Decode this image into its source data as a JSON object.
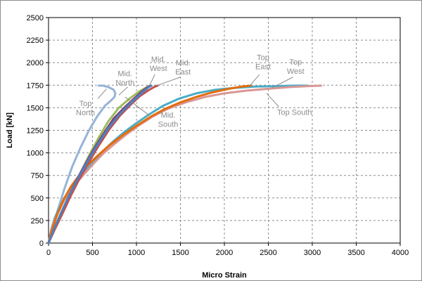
{
  "chart_data": {
    "type": "line",
    "title": "",
    "xlabel": "Micro Strain",
    "ylabel": "Load [kN]",
    "xlim": [
      0,
      4000
    ],
    "ylim": [
      0,
      2500
    ],
    "xticks": [
      0,
      500,
      1000,
      1500,
      2000,
      2500,
      3000,
      3500,
      4000
    ],
    "yticks": [
      0,
      250,
      500,
      750,
      1000,
      1250,
      1500,
      1750,
      2000,
      2250,
      2500
    ],
    "grid": true,
    "legend": "none",
    "series": [
      {
        "color": "#95b3d7",
        "points": [
          [
            0,
            0
          ],
          [
            40,
            150
          ],
          [
            100,
            350
          ],
          [
            180,
            600
          ],
          [
            270,
            850
          ],
          [
            360,
            1050
          ],
          [
            460,
            1250
          ],
          [
            550,
            1400
          ],
          [
            640,
            1520
          ],
          [
            710,
            1580
          ],
          [
            750,
            1620
          ],
          [
            760,
            1660
          ],
          [
            740,
            1700
          ],
          [
            680,
            1730
          ],
          [
            620,
            1745
          ],
          [
            570,
            1745
          ]
        ]
      },
      {
        "color": "#9bbb59",
        "points": [
          [
            0,
            0
          ],
          [
            60,
            150
          ],
          [
            150,
            350
          ],
          [
            250,
            550
          ],
          [
            350,
            750
          ],
          [
            450,
            950
          ],
          [
            560,
            1150
          ],
          [
            680,
            1350
          ],
          [
            800,
            1500
          ],
          [
            920,
            1600
          ],
          [
            1030,
            1680
          ],
          [
            1120,
            1730
          ],
          [
            1150,
            1745
          ]
        ]
      },
      {
        "color": "#4aacc6",
        "points": [
          [
            0,
            0
          ],
          [
            30,
            150
          ],
          [
            70,
            280
          ],
          [
            120,
            380
          ],
          [
            180,
            500
          ],
          [
            250,
            600
          ],
          [
            330,
            700
          ],
          [
            420,
            800
          ],
          [
            520,
            910
          ],
          [
            620,
            1020
          ],
          [
            740,
            1130
          ],
          [
            860,
            1230
          ],
          [
            1000,
            1330
          ],
          [
            1150,
            1430
          ],
          [
            1300,
            1520
          ],
          [
            1480,
            1600
          ],
          [
            1680,
            1660
          ],
          [
            1900,
            1700
          ],
          [
            2100,
            1720
          ],
          [
            2350,
            1735
          ],
          [
            2600,
            1740
          ],
          [
            2800,
            1745
          ],
          [
            2950,
            1745
          ]
        ]
      },
      {
        "color": "#d99694",
        "points": [
          [
            0,
            0
          ],
          [
            30,
            140
          ],
          [
            70,
            260
          ],
          [
            120,
            360
          ],
          [
            180,
            480
          ],
          [
            250,
            580
          ],
          [
            330,
            680
          ],
          [
            420,
            780
          ],
          [
            520,
            890
          ],
          [
            630,
            1000
          ],
          [
            750,
            1100
          ],
          [
            880,
            1200
          ],
          [
            1020,
            1300
          ],
          [
            1180,
            1400
          ],
          [
            1360,
            1490
          ],
          [
            1560,
            1560
          ],
          [
            1780,
            1620
          ],
          [
            2000,
            1660
          ],
          [
            2250,
            1690
          ],
          [
            2500,
            1710
          ],
          [
            2750,
            1730
          ],
          [
            2950,
            1740
          ],
          [
            3100,
            1745
          ]
        ]
      },
      {
        "color": "#e46c0a",
        "points": [
          [
            0,
            0
          ],
          [
            40,
            150
          ],
          [
            100,
            320
          ],
          [
            170,
            480
          ],
          [
            250,
            620
          ],
          [
            340,
            740
          ],
          [
            440,
            860
          ],
          [
            560,
            970
          ],
          [
            700,
            1090
          ],
          [
            850,
            1200
          ],
          [
            1000,
            1300
          ],
          [
            1160,
            1400
          ],
          [
            1330,
            1490
          ],
          [
            1500,
            1560
          ],
          [
            1680,
            1620
          ],
          [
            1860,
            1670
          ],
          [
            2050,
            1710
          ],
          [
            2200,
            1735
          ],
          [
            2300,
            1745
          ]
        ]
      },
      {
        "color": "#7f3f75",
        "points": [
          [
            0,
            0
          ],
          [
            60,
            150
          ],
          [
            140,
            320
          ],
          [
            220,
            500
          ],
          [
            320,
            700
          ],
          [
            420,
            880
          ],
          [
            520,
            1050
          ],
          [
            630,
            1220
          ],
          [
            740,
            1380
          ],
          [
            860,
            1500
          ],
          [
            970,
            1600
          ],
          [
            1060,
            1680
          ],
          [
            1130,
            1730
          ],
          [
            1160,
            1745
          ]
        ]
      },
      {
        "color": "#c0504d",
        "points": [
          [
            0,
            0
          ],
          [
            70,
            150
          ],
          [
            160,
            330
          ],
          [
            250,
            520
          ],
          [
            350,
            710
          ],
          [
            460,
            900
          ],
          [
            570,
            1080
          ],
          [
            690,
            1260
          ],
          [
            810,
            1410
          ],
          [
            930,
            1530
          ],
          [
            1040,
            1630
          ],
          [
            1130,
            1690
          ],
          [
            1200,
            1730
          ],
          [
            1240,
            1745
          ]
        ]
      },
      {
        "color": "#4f81bd",
        "points": [
          [
            0,
            0
          ],
          [
            60,
            150
          ],
          [
            140,
            330
          ],
          [
            230,
            520
          ],
          [
            330,
            710
          ],
          [
            440,
            900
          ],
          [
            550,
            1080
          ],
          [
            670,
            1260
          ],
          [
            790,
            1410
          ],
          [
            910,
            1530
          ],
          [
            1010,
            1620
          ],
          [
            1090,
            1690
          ],
          [
            1140,
            1730
          ],
          [
            1170,
            1745
          ]
        ]
      }
    ],
    "annotations": [
      {
        "label": "top-north",
        "lines": [
          "Top",
          "North"
        ],
        "x": 420,
        "y": 1520,
        "anchor": "middle",
        "leader": [
          [
            560,
            1600
          ],
          [
            660,
            1710
          ]
        ]
      },
      {
        "label": "mid-north",
        "lines": [
          "Mid.",
          "North"
        ],
        "x": 870,
        "y": 1850,
        "anchor": "middle",
        "leader": [
          [
            800,
            1640
          ],
          [
            900,
            1730
          ]
        ]
      },
      {
        "label": "mid-west",
        "lines": [
          "Mid.",
          "West"
        ],
        "x": 1250,
        "y": 2010,
        "anchor": "middle",
        "leader": [
          [
            1210,
            1870
          ],
          [
            1150,
            1750
          ]
        ]
      },
      {
        "label": "mid-east",
        "lines": [
          "Mid.",
          "East"
        ],
        "x": 1530,
        "y": 1970,
        "anchor": "middle",
        "leader": [
          [
            1500,
            1840
          ],
          [
            1230,
            1745
          ]
        ]
      },
      {
        "label": "mid-south",
        "lines": [
          "Mid.",
          "South"
        ],
        "x": 1360,
        "y": 1390,
        "anchor": "middle",
        "leader": [
          [
            1140,
            1420
          ],
          [
            870,
            1620
          ]
        ]
      },
      {
        "label": "top-east",
        "lines": [
          "Top",
          "East"
        ],
        "x": 2440,
        "y": 2030,
        "anchor": "middle",
        "leader": [
          [
            2400,
            1870
          ],
          [
            2290,
            1745
          ]
        ]
      },
      {
        "label": "top-west",
        "lines": [
          "Top",
          "West"
        ],
        "x": 2810,
        "y": 1980,
        "anchor": "middle",
        "leader": [
          [
            2780,
            1840
          ],
          [
            2540,
            1720
          ]
        ]
      },
      {
        "label": "top-south",
        "lines": [
          "Top South"
        ],
        "x": 2600,
        "y": 1420,
        "anchor": "start",
        "leader": [
          [
            2620,
            1510
          ],
          [
            2480,
            1660
          ]
        ]
      }
    ]
  }
}
